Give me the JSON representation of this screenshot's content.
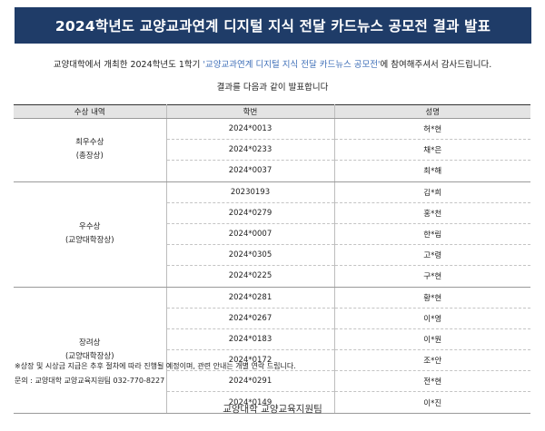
{
  "title": "2024학년도 교양교과연계 디지털 지식 전달 카드뉴스 공모전 결과 발표",
  "intro": {
    "before": "교양대학에서 개최한 2024학년도 1학기 ",
    "highlight": "'교양교과연계 디지털 지식 전달 카드뉴스 공모전'",
    "after": "에 참여해주셔서 감사드립니다."
  },
  "intro2": "결과를 다음과 같이 발표합니다",
  "table": {
    "headers": [
      "수상 내역",
      "학번",
      "성명"
    ],
    "groups": [
      {
        "award": "최우수상",
        "sub": "(총장상)",
        "rows": [
          {
            "id": "2024*0013",
            "name": "허*현"
          },
          {
            "id": "2024*0233",
            "name": "채*은"
          },
          {
            "id": "2024*0037",
            "name": "최*해"
          }
        ]
      },
      {
        "award": "우수상",
        "sub": "(교양대학장상)",
        "rows": [
          {
            "id": "20230193",
            "name": "김*희"
          },
          {
            "id": "2024*0279",
            "name": "홍*천"
          },
          {
            "id": "2024*0007",
            "name": "한*림"
          },
          {
            "id": "2024*0305",
            "name": "고*령"
          },
          {
            "id": "2024*0225",
            "name": "구*현"
          }
        ]
      },
      {
        "award": "장려상",
        "sub": "(교양대학장상)",
        "rows": [
          {
            "id": "2024*0281",
            "name": "황*현"
          },
          {
            "id": "2024*0267",
            "name": "이*영"
          },
          {
            "id": "2024*0183",
            "name": "이*원"
          },
          {
            "id": "2024*0172",
            "name": "조*안"
          },
          {
            "id": "2024*0291",
            "name": "전*현"
          },
          {
            "id": "2024*0149",
            "name": "이*진"
          }
        ]
      }
    ]
  },
  "note": "※상장 및 시상금 지급은 추후 절차에 따라 진행될 예정이며, 관련 안내는 개별 연락 드립니다.",
  "contact": "문의 : 교양대학 교양교육지원팀 032-770-8227",
  "footer": "교양대학 교양교육지원팀"
}
